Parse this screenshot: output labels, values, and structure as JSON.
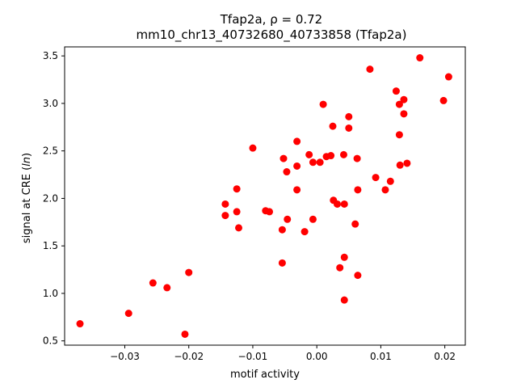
{
  "chart_data": {
    "type": "scatter",
    "title_line1": "Tfap2a, ρ = 0.72",
    "title_line2": "mm10_chr13_40732680_40733858 (Tfap2a)",
    "xlabel": "motif activity",
    "ylabel": "signal at CRE (ln)",
    "xlim": [
      -0.0394,
      0.0232
    ],
    "ylim": [
      0.455,
      3.595
    ],
    "xticks": [
      -0.03,
      -0.02,
      -0.01,
      0.0,
      0.01,
      0.02
    ],
    "xtick_labels": [
      "−0.03",
      "−0.02",
      "−0.01",
      "0.00",
      "0.01",
      "0.02"
    ],
    "yticks": [
      0.5,
      1.0,
      1.5,
      2.0,
      2.5,
      3.0,
      3.5
    ],
    "ytick_labels": [
      "0.5",
      "1.0",
      "1.5",
      "2.0",
      "2.5",
      "3.0",
      "3.5"
    ],
    "marker_color": "#ff0000",
    "grid": false,
    "points": [
      {
        "x": -0.037,
        "y": 0.68
      },
      {
        "x": -0.0294,
        "y": 0.79
      },
      {
        "x": -0.0256,
        "y": 1.11
      },
      {
        "x": -0.0234,
        "y": 1.06
      },
      {
        "x": -0.0206,
        "y": 0.57
      },
      {
        "x": -0.02,
        "y": 1.22
      },
      {
        "x": -0.0143,
        "y": 1.94
      },
      {
        "x": -0.0143,
        "y": 1.82
      },
      {
        "x": -0.0125,
        "y": 2.1
      },
      {
        "x": -0.0125,
        "y": 1.86
      },
      {
        "x": -0.0122,
        "y": 1.69
      },
      {
        "x": -0.01,
        "y": 2.53
      },
      {
        "x": -0.008,
        "y": 1.87
      },
      {
        "x": -0.0074,
        "y": 1.86
      },
      {
        "x": -0.0054,
        "y": 1.67
      },
      {
        "x": -0.0054,
        "y": 1.32
      },
      {
        "x": -0.0052,
        "y": 2.42
      },
      {
        "x": -0.0047,
        "y": 2.28
      },
      {
        "x": -0.0046,
        "y": 1.78
      },
      {
        "x": -0.0031,
        "y": 2.6
      },
      {
        "x": -0.0031,
        "y": 2.34
      },
      {
        "x": -0.0031,
        "y": 2.09
      },
      {
        "x": -0.0019,
        "y": 1.65
      },
      {
        "x": -0.0012,
        "y": 2.46
      },
      {
        "x": -0.0006,
        "y": 2.38
      },
      {
        "x": -0.0006,
        "y": 1.78
      },
      {
        "x": 0.0005,
        "y": 2.38
      },
      {
        "x": 0.001,
        "y": 2.99
      },
      {
        "x": 0.0015,
        "y": 2.44
      },
      {
        "x": 0.0022,
        "y": 2.45
      },
      {
        "x": 0.0025,
        "y": 2.76
      },
      {
        "x": 0.0026,
        "y": 1.98
      },
      {
        "x": 0.0032,
        "y": 1.94
      },
      {
        "x": 0.0036,
        "y": 1.27
      },
      {
        "x": 0.0042,
        "y": 2.46
      },
      {
        "x": 0.0043,
        "y": 1.94
      },
      {
        "x": 0.0043,
        "y": 1.38
      },
      {
        "x": 0.0043,
        "y": 0.93
      },
      {
        "x": 0.005,
        "y": 2.86
      },
      {
        "x": 0.005,
        "y": 2.74
      },
      {
        "x": 0.006,
        "y": 1.73
      },
      {
        "x": 0.0063,
        "y": 2.42
      },
      {
        "x": 0.0064,
        "y": 2.09
      },
      {
        "x": 0.0064,
        "y": 1.19
      },
      {
        "x": 0.0083,
        "y": 3.36
      },
      {
        "x": 0.0092,
        "y": 2.22
      },
      {
        "x": 0.0107,
        "y": 2.09
      },
      {
        "x": 0.0115,
        "y": 2.18
      },
      {
        "x": 0.0124,
        "y": 3.13
      },
      {
        "x": 0.0129,
        "y": 2.99
      },
      {
        "x": 0.0129,
        "y": 2.67
      },
      {
        "x": 0.013,
        "y": 2.35
      },
      {
        "x": 0.0136,
        "y": 3.04
      },
      {
        "x": 0.0136,
        "y": 2.89
      },
      {
        "x": 0.0141,
        "y": 2.37
      },
      {
        "x": 0.0161,
        "y": 3.48
      },
      {
        "x": 0.0198,
        "y": 3.03
      },
      {
        "x": 0.0206,
        "y": 3.28
      }
    ]
  }
}
